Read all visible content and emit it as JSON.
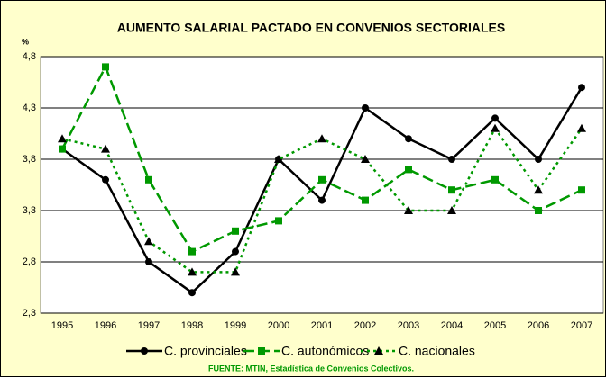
{
  "chart_data": {
    "type": "line",
    "title": "AUMENTO SALARIAL PACTADO EN CONVENIOS SECTORIALES",
    "y_label": "%",
    "source": "FUENTE: MTIN, Estadística de Convenios Colectivos.",
    "categories": [
      "1995",
      "1996",
      "1997",
      "1998",
      "1999",
      "2000",
      "2001",
      "2002",
      "2003",
      "2004",
      "2005",
      "2006",
      "2007"
    ],
    "ylim": [
      2.3,
      4.8
    ],
    "yticks": [
      {
        "value": 2.3,
        "label": "2,3"
      },
      {
        "value": 2.8,
        "label": "2,8"
      },
      {
        "value": 3.3,
        "label": "3,3"
      },
      {
        "value": 3.8,
        "label": "3,8"
      },
      {
        "value": 4.3,
        "label": "4,3"
      },
      {
        "value": 4.8,
        "label": "4,8"
      }
    ],
    "grid": true,
    "legend": "bottom",
    "series": [
      {
        "name": "C. provinciales",
        "color": "#000000",
        "marker_color": "#000000",
        "marker": "circle",
        "line_style": "solid",
        "values": [
          3.9,
          3.6,
          2.8,
          2.5,
          2.9,
          3.8,
          3.4,
          4.3,
          4.0,
          3.8,
          4.2,
          3.8,
          4.5
        ]
      },
      {
        "name": "C. autonómicos",
        "color": "#009900",
        "marker_color": "#009900",
        "marker": "square",
        "line_style": "dashed",
        "values": [
          3.9,
          4.7,
          3.6,
          2.9,
          3.1,
          3.2,
          3.6,
          3.4,
          3.7,
          3.5,
          3.6,
          3.3,
          3.5
        ]
      },
      {
        "name": "C. nacionales",
        "color": "#009900",
        "marker_color": "#000000",
        "marker": "triangle",
        "line_style": "dotted",
        "values": [
          4.0,
          3.9,
          3.0,
          2.7,
          2.7,
          3.8,
          4.0,
          3.8,
          3.3,
          3.3,
          4.1,
          3.5,
          4.1
        ]
      }
    ]
  }
}
